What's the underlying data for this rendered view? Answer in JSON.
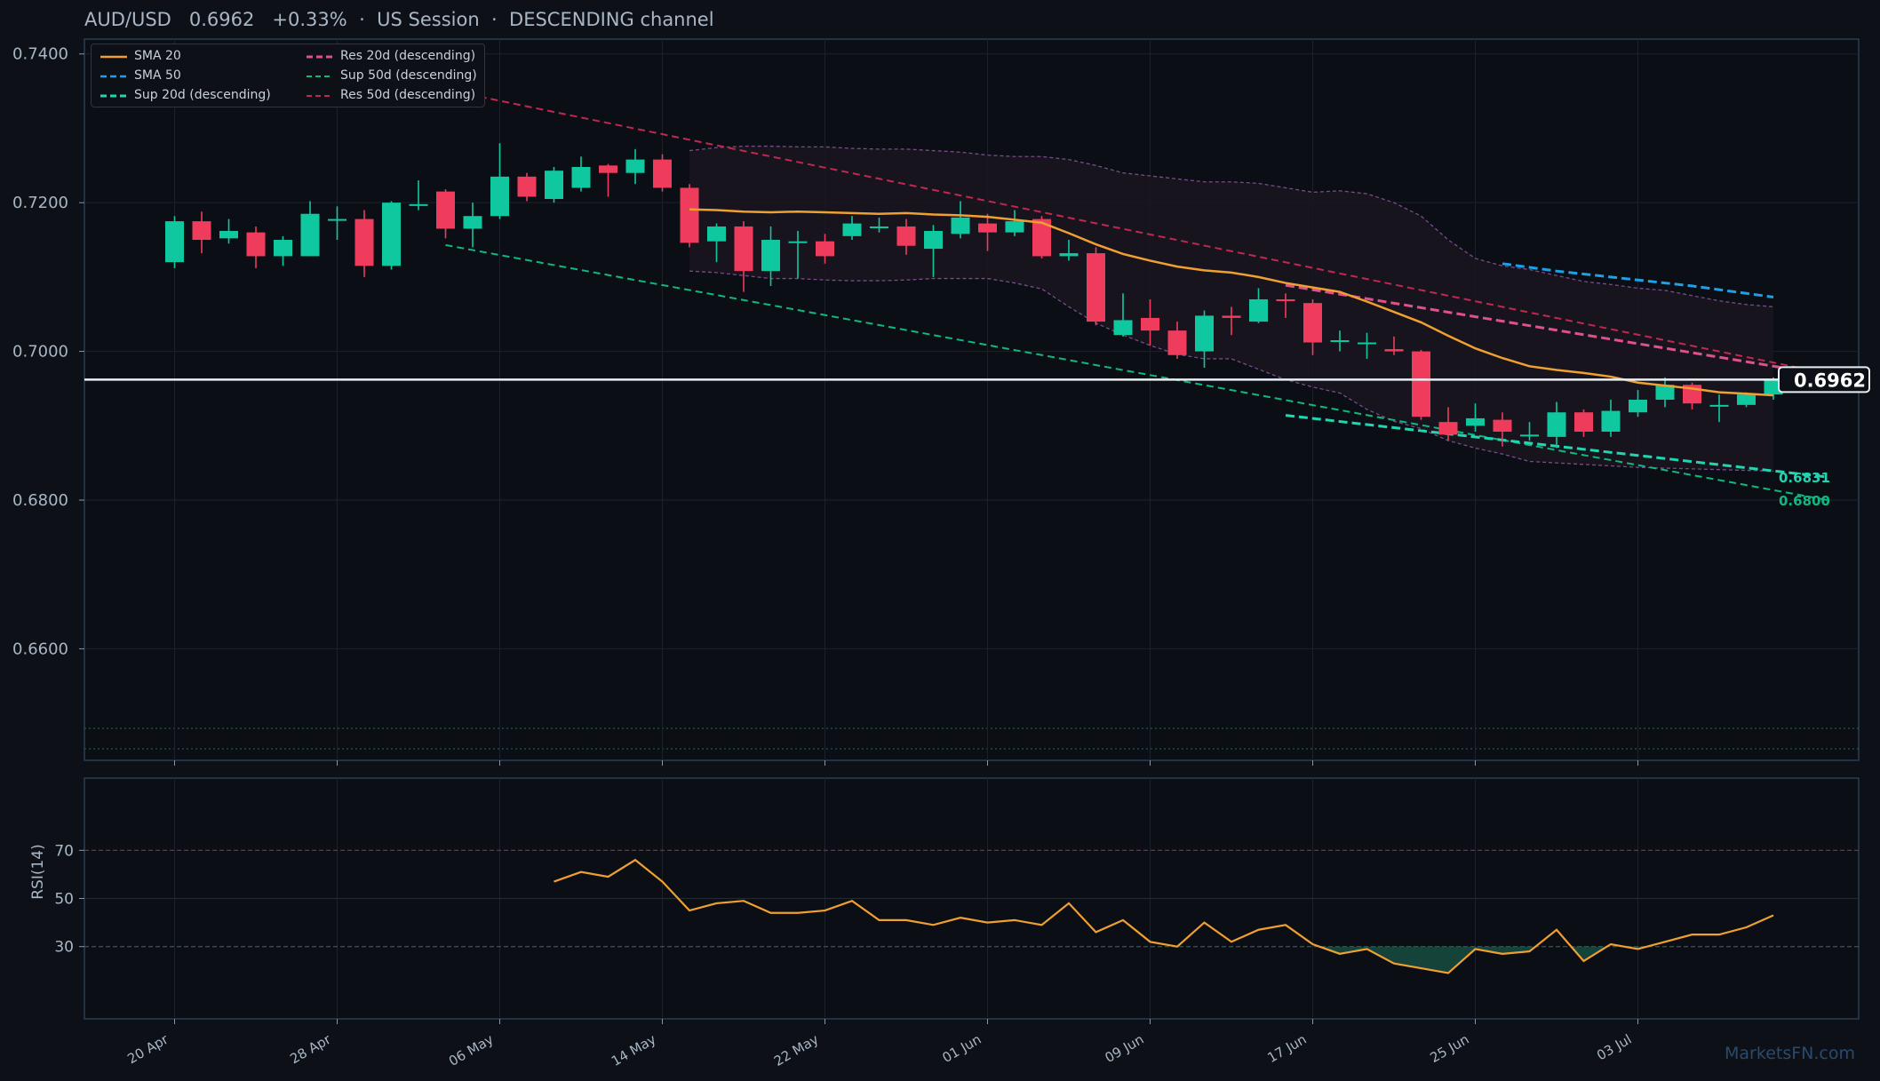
{
  "header": {
    "symbol": "AUD/USD",
    "price": "0.6962",
    "change": "+0.33%",
    "session": "US Session",
    "channel": "DESCENDING channel",
    "separator": "·"
  },
  "watermark": "MarketsFN.com",
  "legend": [
    {
      "label": "SMA 20",
      "color": "#f0a030",
      "style": "solid"
    },
    {
      "label": "SMA 50",
      "color": "#1e9fe6",
      "style": "dashed"
    },
    {
      "label": "Sup 20d (descending)",
      "color": "#20d6b0",
      "style": "dashed"
    },
    {
      "label": "Res 20d (descending)",
      "color": "#e0508a",
      "style": "dashed"
    },
    {
      "label": "Sup 50d (descending)",
      "color": "#10b880",
      "style": "dashed"
    },
    {
      "label": "Res 50d (descending)",
      "color": "#c02850",
      "style": "dashed"
    }
  ],
  "colors": {
    "up": "#10c8a0",
    "down": "#f03c5c",
    "sma20": "#f0a030",
    "sma50": "#1e9fe6",
    "sup20": "#20d6b0",
    "res20": "#e0508a",
    "sup50": "#10b880",
    "res50": "#c02850",
    "band": "#7a4a8a",
    "rsi": "#f0a030",
    "grid": "#1c222b",
    "frame": "#2a3e55"
  },
  "chart_data": {
    "type": "candlestick",
    "price_axis": {
      "ylim": [
        0.645,
        0.742
      ],
      "ticks": [
        "0.7400",
        "0.7200",
        "0.7000",
        "0.6800",
        "0.6600"
      ]
    },
    "x_axis": {
      "tick_labels": [
        "20 Apr",
        "28 Apr",
        "06 May",
        "14 May",
        "22 May",
        "01 Jun",
        "09 Jun",
        "17 Jun",
        "25 Jun",
        "03 Jul"
      ]
    },
    "current_price": {
      "value": 0.6962,
      "label": "0.6962"
    },
    "level_labels": [
      {
        "value": 0.6831,
        "label": "0.6831",
        "color": "#20d6b0"
      },
      {
        "value": 0.68,
        "label": "0.6800",
        "color": "#10b880"
      }
    ],
    "candles": [
      [
        0.712,
        0.7175,
        0.7112,
        0.7182
      ],
      [
        0.7175,
        0.715,
        0.7132,
        0.7188
      ],
      [
        0.7152,
        0.7162,
        0.7145,
        0.7178
      ],
      [
        0.716,
        0.7128,
        0.7112,
        0.7168
      ],
      [
        0.7128,
        0.715,
        0.7115,
        0.7155
      ],
      [
        0.7128,
        0.7185,
        0.7128,
        0.7202
      ],
      [
        0.7178,
        0.7178,
        0.715,
        0.7195
      ],
      [
        0.7178,
        0.7115,
        0.71,
        0.719
      ],
      [
        0.7115,
        0.72,
        0.711,
        0.7202
      ],
      [
        0.7198,
        0.7198,
        0.719,
        0.723
      ],
      [
        0.7215,
        0.7165,
        0.7152,
        0.7218
      ],
      [
        0.7165,
        0.7182,
        0.714,
        0.72
      ],
      [
        0.7182,
        0.7235,
        0.7178,
        0.728
      ],
      [
        0.7235,
        0.7208,
        0.7202,
        0.724
      ],
      [
        0.7205,
        0.7243,
        0.72,
        0.7248
      ],
      [
        0.722,
        0.7248,
        0.7215,
        0.7262
      ],
      [
        0.725,
        0.724,
        0.7208,
        0.7252
      ],
      [
        0.724,
        0.7258,
        0.7225,
        0.7272
      ],
      [
        0.7258,
        0.722,
        0.7215,
        0.7265
      ],
      [
        0.722,
        0.7146,
        0.714,
        0.7225
      ],
      [
        0.7148,
        0.7168,
        0.712,
        0.7172
      ],
      [
        0.7168,
        0.7108,
        0.708,
        0.7175
      ],
      [
        0.7108,
        0.715,
        0.7088,
        0.7168
      ],
      [
        0.7148,
        0.7148,
        0.7098,
        0.7162
      ],
      [
        0.7148,
        0.7128,
        0.7118,
        0.7158
      ],
      [
        0.7155,
        0.7172,
        0.715,
        0.7182
      ],
      [
        0.7168,
        0.7168,
        0.716,
        0.718
      ],
      [
        0.7168,
        0.7142,
        0.713,
        0.7178
      ],
      [
        0.7138,
        0.7162,
        0.71,
        0.717
      ],
      [
        0.7158,
        0.718,
        0.7152,
        0.7202
      ],
      [
        0.7172,
        0.716,
        0.7135,
        0.7185
      ],
      [
        0.716,
        0.7175,
        0.7155,
        0.719
      ],
      [
        0.7178,
        0.7128,
        0.7125,
        0.7182
      ],
      [
        0.7128,
        0.7132,
        0.7122,
        0.715
      ],
      [
        0.7132,
        0.704,
        0.7035,
        0.714
      ],
      [
        0.7022,
        0.7042,
        0.702,
        0.7078
      ],
      [
        0.7045,
        0.7028,
        0.7008,
        0.707
      ],
      [
        0.7028,
        0.6995,
        0.699,
        0.704
      ],
      [
        0.7,
        0.7048,
        0.6978,
        0.7055
      ],
      [
        0.7048,
        0.7045,
        0.7022,
        0.706
      ],
      [
        0.704,
        0.707,
        0.7038,
        0.7085
      ],
      [
        0.707,
        0.7068,
        0.7045,
        0.7078
      ],
      [
        0.7065,
        0.7012,
        0.6995,
        0.707
      ],
      [
        0.7015,
        0.7015,
        0.7,
        0.7028
      ],
      [
        0.7012,
        0.7012,
        0.699,
        0.7025
      ],
      [
        0.7003,
        0.7,
        0.6995,
        0.702
      ],
      [
        0.7,
        0.6912,
        0.6908,
        0.7002
      ],
      [
        0.6905,
        0.6888,
        0.688,
        0.6925
      ],
      [
        0.69,
        0.691,
        0.6892,
        0.693
      ],
      [
        0.6908,
        0.6892,
        0.6872,
        0.6918
      ],
      [
        0.6888,
        0.6888,
        0.688,
        0.6905
      ],
      [
        0.6885,
        0.6918,
        0.687,
        0.6932
      ],
      [
        0.6918,
        0.6892,
        0.6885,
        0.6922
      ],
      [
        0.6892,
        0.692,
        0.6885,
        0.6935
      ],
      [
        0.6918,
        0.6935,
        0.6912,
        0.6948
      ],
      [
        0.6935,
        0.6955,
        0.6925,
        0.6965
      ],
      [
        0.6955,
        0.693,
        0.6922,
        0.6958
      ],
      [
        0.6928,
        0.6928,
        0.6905,
        0.6942
      ],
      [
        0.6928,
        0.6942,
        0.6925,
        0.6945
      ],
      [
        0.6942,
        0.6962,
        0.6935,
        0.6965
      ]
    ],
    "sma20": {
      "start_index": 19,
      "values": [
        0.7191,
        0.719,
        0.7188,
        0.7187,
        0.7188,
        0.7187,
        0.7186,
        0.7185,
        0.7186,
        0.7184,
        0.7183,
        0.7181,
        0.7177,
        0.7173,
        0.7159,
        0.7144,
        0.7131,
        0.7122,
        0.7114,
        0.7109,
        0.7106,
        0.71,
        0.7092,
        0.7086,
        0.708,
        0.7067,
        0.7053,
        0.7039,
        0.7021,
        0.7004,
        0.6991,
        0.698,
        0.6975,
        0.6971,
        0.6966,
        0.6958,
        0.6954,
        0.695,
        0.6945,
        0.6943,
        0.6941
      ]
    },
    "sma50": {
      "start_index": 49,
      "values": [
        0.7118,
        0.7113,
        0.7108,
        0.7104,
        0.71,
        0.7096,
        0.7092,
        0.7088,
        0.7083,
        0.7078,
        0.7073
      ]
    },
    "bollinger": {
      "start_index": 19,
      "upper": [
        0.727,
        0.7274,
        0.7276,
        0.7276,
        0.7275,
        0.7275,
        0.7273,
        0.7272,
        0.7272,
        0.727,
        0.7268,
        0.7264,
        0.7262,
        0.7262,
        0.7258,
        0.725,
        0.724,
        0.7236,
        0.7232,
        0.7228,
        0.7228,
        0.7226,
        0.722,
        0.7214,
        0.7216,
        0.7212,
        0.72,
        0.7182,
        0.715,
        0.7125,
        0.7115,
        0.711,
        0.7102,
        0.7094,
        0.709,
        0.7085,
        0.7082,
        0.7075,
        0.7068,
        0.7063,
        0.706
      ],
      "lower": [
        0.7108,
        0.7106,
        0.7102,
        0.7098,
        0.7098,
        0.7096,
        0.7095,
        0.7095,
        0.7096,
        0.7098,
        0.7098,
        0.7098,
        0.7092,
        0.7084,
        0.706,
        0.7038,
        0.7022,
        0.7008,
        0.6996,
        0.699,
        0.699,
        0.6976,
        0.6962,
        0.6952,
        0.6944,
        0.6922,
        0.6906,
        0.6896,
        0.688,
        0.687,
        0.6862,
        0.6852,
        0.685,
        0.6848,
        0.6846,
        0.6844,
        0.6843,
        0.6842,
        0.6841,
        0.684,
        0.6839
      ]
    },
    "trendlines": [
      {
        "name": "Res 50d (descending)",
        "from": [
          10,
          0.7352
        ],
        "to": [
          61,
          0.697
        ]
      },
      {
        "name": "Sup 50d (descending)",
        "from": [
          10,
          0.7143
        ],
        "to": [
          61,
          0.68
        ]
      },
      {
        "name": "Res 20d (descending)",
        "from": [
          41,
          0.7089
        ],
        "to": [
          61,
          0.6968
        ]
      },
      {
        "name": "Sup 20d (descending)",
        "from": [
          41,
          0.6914
        ],
        "to": [
          61,
          0.6831
        ]
      }
    ],
    "rsi": {
      "label": "RSI(14)",
      "ylim": [
        0,
        100
      ],
      "ticks": [
        "70",
        "50",
        "30"
      ],
      "levels": [
        70,
        50,
        30
      ],
      "start_index": 14,
      "values": [
        57,
        61,
        59,
        66,
        57,
        45,
        48,
        49,
        44,
        44,
        45,
        49,
        41,
        41,
        39,
        42,
        40,
        41,
        39,
        48,
        36,
        41,
        32,
        30,
        40,
        32,
        37,
        39,
        31,
        27,
        29,
        23,
        21,
        19,
        29,
        27,
        28,
        37,
        24,
        31,
        29,
        32,
        35,
        35,
        38,
        43
      ]
    }
  }
}
